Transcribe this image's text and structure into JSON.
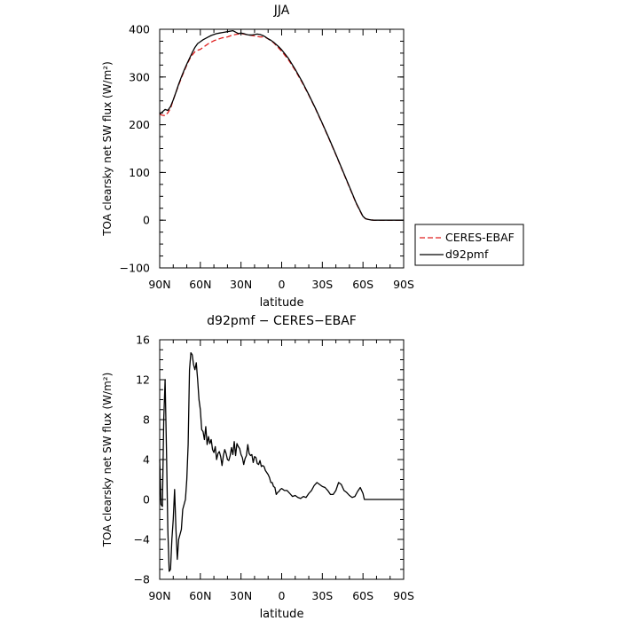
{
  "chart_data": [
    {
      "type": "line",
      "title": "JJA",
      "xlabel": "latitude",
      "ylabel": "TOA clearsky net SW flux (W/m²)",
      "xlim": [
        90,
        -90
      ],
      "ylim": [
        -100,
        400
      ],
      "xticks": [
        90,
        60,
        30,
        0,
        -30,
        -60,
        -90
      ],
      "xtick_labels": [
        "90N",
        "60N",
        "30N",
        "0",
        "30S",
        "60S",
        "90S"
      ],
      "yticks": [
        -100,
        0,
        100,
        200,
        300,
        400
      ],
      "ytick_labels": [
        "−100",
        "0",
        "100",
        "200",
        "300",
        "400"
      ],
      "legend_position": "outside-right",
      "series": [
        {
          "name": "CERES-EBAF",
          "color": "#e02020",
          "dash": "dashed",
          "x": [
            90,
            88,
            86,
            84,
            82,
            80,
            78,
            76,
            74,
            72,
            70,
            68,
            66,
            64,
            62,
            60,
            58,
            56,
            54,
            52,
            50,
            48,
            46,
            44,
            42,
            40,
            38,
            36,
            34,
            32,
            30,
            28,
            26,
            24,
            22,
            20,
            18,
            16,
            14,
            12,
            10,
            8,
            6,
            4,
            2,
            0,
            -5,
            -10,
            -15,
            -20,
            -25,
            -30,
            -35,
            -40,
            -45,
            -50,
            -55,
            -60,
            -62,
            -64,
            -66,
            -68,
            -70,
            -75,
            -80,
            -85,
            -90
          ],
          "y": [
            222,
            220,
            219,
            225,
            234,
            252,
            268,
            283,
            298,
            312,
            325,
            337,
            346,
            353,
            356,
            358,
            362,
            366,
            370,
            373,
            376,
            378,
            380,
            382,
            383,
            384,
            386,
            388,
            389,
            390,
            391,
            390,
            389,
            388,
            387,
            386,
            385,
            384,
            384,
            383,
            380,
            376,
            372,
            366,
            360,
            354,
            336,
            314,
            289,
            262,
            233,
            202,
            170,
            137,
            103,
            69,
            35,
            7,
            3,
            1.5,
            0.5,
            0,
            0,
            0,
            0,
            0,
            0
          ]
        },
        {
          "name": "d92pmf",
          "color": "#000000",
          "dash": "solid",
          "x": [
            90,
            88,
            86,
            84,
            82,
            80,
            78,
            76,
            74,
            72,
            70,
            68,
            66,
            64,
            62,
            60,
            58,
            56,
            54,
            52,
            50,
            48,
            46,
            44,
            42,
            40,
            38,
            36,
            34,
            32,
            30,
            28,
            26,
            24,
            22,
            20,
            18,
            16,
            14,
            12,
            10,
            8,
            6,
            4,
            2,
            0,
            -5,
            -10,
            -15,
            -20,
            -25,
            -30,
            -35,
            -40,
            -45,
            -50,
            -55,
            -60,
            -62,
            -64,
            -66,
            -68,
            -70,
            -75,
            -80,
            -85,
            -90
          ],
          "y": [
            222,
            227,
            232,
            230,
            238,
            252,
            268,
            285,
            300,
            314,
            327,
            339,
            351,
            362,
            370,
            374,
            378,
            381,
            384,
            387,
            389,
            391,
            392,
            393,
            394,
            395,
            396,
            397,
            394,
            391,
            392,
            391,
            389,
            388,
            388,
            389,
            390,
            389,
            387,
            384,
            380,
            377,
            373,
            368,
            363,
            357,
            339,
            316,
            291,
            263,
            234,
            203,
            171,
            138,
            104,
            70,
            36,
            8,
            3,
            1.5,
            0.5,
            0,
            0,
            0,
            0,
            0,
            0
          ]
        }
      ]
    },
    {
      "type": "line",
      "title": "d92pmf − CERES−EBAF",
      "xlabel": "latitude",
      "ylabel": "TOA clearsky net SW flux (W/m²)",
      "xlim": [
        90,
        -90
      ],
      "ylim": [
        -8,
        16
      ],
      "xticks": [
        90,
        60,
        30,
        0,
        -30,
        -60,
        -90
      ],
      "xtick_labels": [
        "90N",
        "60N",
        "30N",
        "0",
        "30S",
        "60S",
        "90S"
      ],
      "yticks": [
        -8,
        -4,
        0,
        4,
        8,
        12,
        16
      ],
      "ytick_labels": [
        "−8",
        "−4",
        "0",
        "4",
        "8",
        "12",
        "16"
      ],
      "series": [
        {
          "color": "#000000",
          "x": [
            90,
            89,
            88,
            87,
            86,
            85,
            84,
            83,
            82,
            81,
            80,
            79,
            78,
            77,
            76,
            75,
            74,
            73,
            72,
            71,
            70,
            69,
            68,
            67,
            66,
            65,
            64,
            63,
            62,
            61,
            60,
            59,
            58,
            57,
            56,
            55,
            54,
            53,
            52,
            51,
            50,
            49,
            48,
            47,
            46,
            45,
            44,
            43,
            42,
            41,
            40,
            39,
            38,
            37,
            36,
            35,
            34,
            33,
            32,
            31,
            30,
            29,
            28,
            27,
            26,
            25,
            24,
            23,
            22,
            21,
            20,
            19,
            18,
            17,
            16,
            15,
            14,
            13,
            12,
            11,
            10,
            9,
            8,
            7,
            6,
            5,
            4,
            3,
            2,
            1,
            0,
            -2,
            -4,
            -6,
            -8,
            -10,
            -12,
            -14,
            -16,
            -18,
            -20,
            -22,
            -24,
            -26,
            -28,
            -30,
            -32,
            -34,
            -36,
            -38,
            -40,
            -42,
            -44,
            -46,
            -48,
            -50,
            -52,
            -54,
            -56,
            -58,
            -60,
            -61,
            -62,
            -63,
            -64,
            -65,
            -66,
            -67,
            -68,
            -69,
            -70,
            -71,
            -72,
            -73,
            -74,
            -75,
            -76,
            -78,
            -80,
            -84,
            -90
          ],
          "y": [
            4,
            -0.5,
            -0.7,
            8,
            12,
            5,
            -3,
            -7.2,
            -7,
            -4,
            -2,
            1,
            -3,
            -6,
            -4,
            -3.5,
            -3,
            -1,
            -0.5,
            0,
            2,
            5.5,
            13,
            14.7,
            14.5,
            13.5,
            13,
            13.7,
            12,
            10,
            9,
            7,
            6.8,
            6,
            7.3,
            5.5,
            6.3,
            5.6,
            6,
            5,
            4.7,
            5.3,
            4,
            4.6,
            4.8,
            4.3,
            3.4,
            4.4,
            5,
            4.6,
            4,
            3.9,
            4.4,
            5.2,
            4.5,
            5.8,
            4.4,
            5.6,
            5.3,
            5.1,
            4.5,
            4.2,
            3.5,
            4.1,
            4.4,
            5.5,
            4.6,
            4.4,
            4.5,
            3.7,
            4.3,
            4.2,
            3.6,
            3.5,
            3.9,
            3.3,
            3.4,
            3.3,
            2.9,
            2.7,
            2.5,
            2.2,
            1.7,
            1.7,
            1.3,
            1.2,
            0.5,
            0.7,
            0.8,
            1,
            1.1,
            0.9,
            0.9,
            0.6,
            0.3,
            0.4,
            0.2,
            0.1,
            0.3,
            0.2,
            0.6,
            0.9,
            1.4,
            1.7,
            1.5,
            1.3,
            1.2,
            0.9,
            0.5,
            0.5,
            0.9,
            1.7,
            1.5,
            0.9,
            0.7,
            0.4,
            0.2,
            0.3,
            0.8,
            1.2,
            0.6,
            0,
            0,
            0,
            0,
            0,
            0,
            0,
            0,
            0,
            0,
            0,
            0,
            0,
            0,
            0,
            0,
            0,
            0,
            0,
            0
          ]
        }
      ]
    }
  ]
}
